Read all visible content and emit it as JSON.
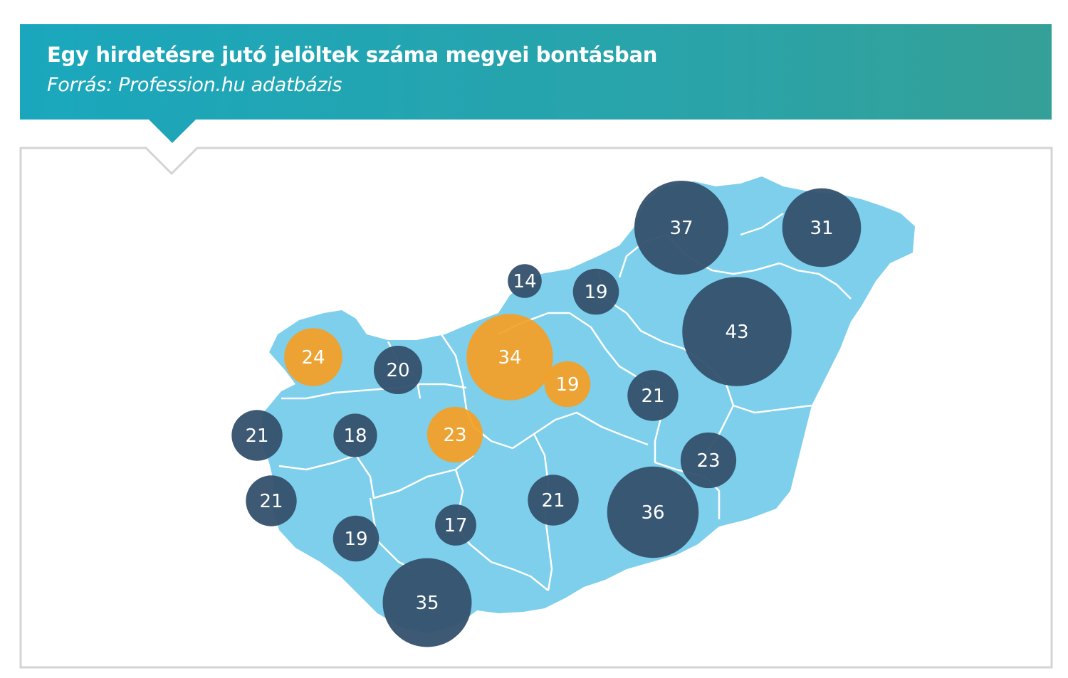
{
  "header": {
    "title": "Egy hirdetésre jutó jelöltek száma megyei bontásban",
    "subtitle": "Forrás: Profession.hu adatbázis"
  },
  "colors": {
    "header": "#1fa5b8",
    "map_fill": "#7dcfec",
    "border": "#ffffff",
    "bubble_dark": "#34506c",
    "bubble_highlight": "#f5a023",
    "frame": "#d4d4d4"
  },
  "chart_data": {
    "type": "bubble-map",
    "region": "Hungary",
    "unit": "jelölt / hirdetés",
    "points": [
      {
        "value": 37,
        "highlight": false
      },
      {
        "value": 31,
        "highlight": false
      },
      {
        "value": 14,
        "highlight": false
      },
      {
        "value": 19,
        "highlight": false
      },
      {
        "value": 43,
        "highlight": false
      },
      {
        "value": 34,
        "highlight": true
      },
      {
        "value": 24,
        "highlight": true
      },
      {
        "value": 20,
        "highlight": false
      },
      {
        "value": 19,
        "highlight": true
      },
      {
        "value": 21,
        "highlight": false
      },
      {
        "value": 21,
        "highlight": false
      },
      {
        "value": 18,
        "highlight": false
      },
      {
        "value": 23,
        "highlight": true
      },
      {
        "value": 23,
        "highlight": false
      },
      {
        "value": 21,
        "highlight": false
      },
      {
        "value": 21,
        "highlight": false
      },
      {
        "value": 36,
        "highlight": false
      },
      {
        "value": 19,
        "highlight": false
      },
      {
        "value": 17,
        "highlight": false
      },
      {
        "value": 35,
        "highlight": false
      }
    ]
  }
}
